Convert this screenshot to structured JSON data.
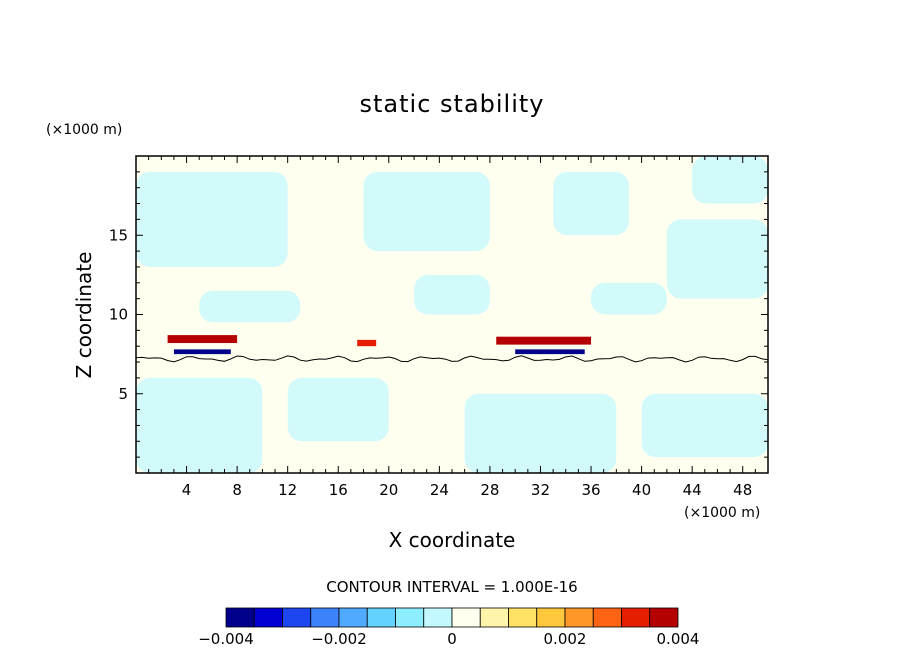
{
  "chart_data": {
    "type": "heatmap",
    "title": "static stability",
    "xlabel": "X coordinate",
    "ylabel": "Z coordinate",
    "x_unit": "(×1000 m)",
    "y_unit": "(×1000 m)",
    "xlim": [
      0,
      50
    ],
    "ylim": [
      0,
      20
    ],
    "x_ticks": [
      4,
      8,
      12,
      16,
      20,
      24,
      28,
      32,
      36,
      40,
      44,
      48
    ],
    "y_ticks": [
      5,
      10,
      15
    ],
    "contour_note": "CONTOUR INTERVAL = 1.000E-16",
    "colorbar": {
      "range": [
        -0.004,
        0.004
      ],
      "tick_values": [
        -0.004,
        -0.002,
        0,
        0.002,
        0.004
      ],
      "tick_labels": [
        "−0.004",
        "−0.002",
        "0",
        "0.002",
        "0.004"
      ],
      "colors": [
        "#00008c",
        "#0000d2",
        "#1e46f0",
        "#3c82fa",
        "#50aaff",
        "#64d2ff",
        "#8ceeff",
        "#c3f8ff",
        "#fffff0",
        "#fff5aa",
        "#ffe164",
        "#ffc83c",
        "#ff9628",
        "#ff6414",
        "#e61e00",
        "#b40000"
      ]
    },
    "features": {
      "tropopause_height": 7.2,
      "positive_bands": [
        {
          "x": [
            2.5,
            8.0
          ],
          "z": [
            8.2,
            8.7
          ],
          "value": 0.004
        },
        {
          "x": [
            28.5,
            36.0
          ],
          "z": [
            8.1,
            8.6
          ],
          "value": 0.004
        },
        {
          "x": [
            17.5,
            19.0
          ],
          "z": [
            8.0,
            8.4
          ],
          "value": 0.003
        }
      ],
      "negative_bands": [
        {
          "x": [
            3.0,
            7.5
          ],
          "z": [
            7.5,
            7.8
          ],
          "value": -0.004
        },
        {
          "x": [
            30.0,
            35.5
          ],
          "z": [
            7.5,
            7.8
          ],
          "value": -0.004
        }
      ]
    }
  }
}
